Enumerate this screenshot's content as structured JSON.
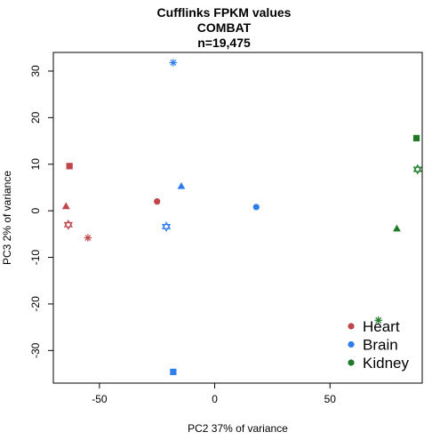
{
  "chart_data": {
    "type": "scatter",
    "title": [
      "Cufflinks FPKM values",
      "COMBAT",
      "n=19,475"
    ],
    "xlabel": "PC2 37% of variance",
    "ylabel": "PC3 2% of variance",
    "xlim": [
      -70,
      90
    ],
    "ylim": [
      -37,
      34
    ],
    "xticks": [
      -50,
      0,
      50
    ],
    "yticks": [
      -30,
      -20,
      -10,
      0,
      10,
      20,
      30
    ],
    "grid": false,
    "legend_position": "bottom-right",
    "series": [
      {
        "name": "Heart",
        "color": "#c0464c",
        "points": [
          {
            "x": -63,
            "y": 9.6,
            "shape": "square"
          },
          {
            "x": -64.5,
            "y": 1.0,
            "shape": "triangle"
          },
          {
            "x": -25,
            "y": 2.0,
            "shape": "circle"
          },
          {
            "x": -63.5,
            "y": -3.0,
            "shape": "star-of-david"
          },
          {
            "x": -55,
            "y": -5.8,
            "shape": "asterisk"
          }
        ]
      },
      {
        "name": "Brain",
        "color": "#2f7ded",
        "points": [
          {
            "x": -18,
            "y": 31.8,
            "shape": "asterisk"
          },
          {
            "x": -14.5,
            "y": 5.3,
            "shape": "triangle"
          },
          {
            "x": 18,
            "y": 0.8,
            "shape": "circle"
          },
          {
            "x": -21,
            "y": -3.4,
            "shape": "star-of-david"
          },
          {
            "x": -18,
            "y": -34.6,
            "shape": "square"
          }
        ]
      },
      {
        "name": "Kidney",
        "color": "#1f7a28",
        "points": [
          {
            "x": 87.5,
            "y": 15.6,
            "shape": "square"
          },
          {
            "x": 88,
            "y": 8.9,
            "shape": "star-of-david"
          },
          {
            "x": 79,
            "y": -3.8,
            "shape": "triangle"
          },
          {
            "x": 71,
            "y": -23.5,
            "shape": "asterisk"
          }
        ]
      }
    ]
  }
}
